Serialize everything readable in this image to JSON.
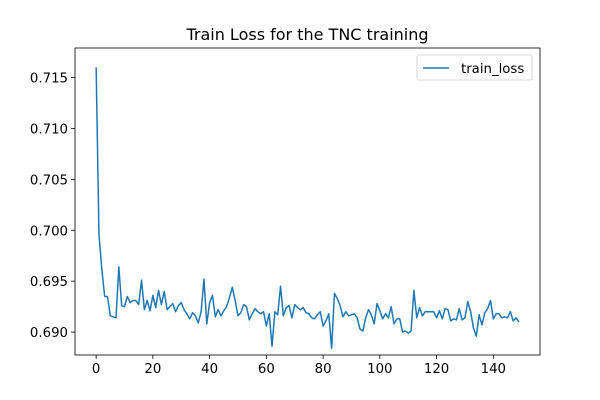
{
  "chart_data": {
    "type": "line",
    "title": "Train Loss for the TNC training",
    "xlabel": "",
    "ylabel": "",
    "xlim": [
      -7.45,
      156.45
    ],
    "ylim": [
      0.68775,
      0.7179
    ],
    "xticks": [
      0,
      20,
      40,
      60,
      80,
      100,
      120,
      140
    ],
    "xtick_labels": [
      "0",
      "20",
      "40",
      "60",
      "80",
      "100",
      "120",
      "140"
    ],
    "yticks": [
      0.69,
      0.695,
      0.7,
      0.705,
      0.71,
      0.715
    ],
    "ytick_labels": [
      "0.690",
      "0.695",
      "0.700",
      "0.705",
      "0.710",
      "0.715"
    ],
    "grid": false,
    "legend_position": "top-right",
    "series": [
      {
        "name": "train_loss",
        "color": "#1f77b4",
        "x": [
          0,
          1,
          2,
          3,
          4,
          5,
          6,
          7,
          8,
          9,
          10,
          11,
          12,
          13,
          14,
          15,
          16,
          17,
          18,
          19,
          20,
          21,
          22,
          23,
          24,
          25,
          26,
          27,
          28,
          29,
          30,
          31,
          32,
          33,
          34,
          35,
          36,
          37,
          38,
          39,
          40,
          41,
          42,
          43,
          44,
          45,
          46,
          47,
          48,
          49,
          50,
          51,
          52,
          53,
          54,
          55,
          56,
          57,
          58,
          59,
          60,
          61,
          62,
          63,
          64,
          65,
          66,
          67,
          68,
          69,
          70,
          71,
          72,
          73,
          74,
          75,
          76,
          77,
          78,
          79,
          80,
          81,
          82,
          83,
          84,
          85,
          86,
          87,
          88,
          89,
          90,
          91,
          92,
          93,
          94,
          95,
          96,
          97,
          98,
          99,
          100,
          101,
          102,
          103,
          104,
          105,
          106,
          107,
          108,
          109,
          110,
          111,
          112,
          113,
          114,
          115,
          116,
          117,
          118,
          119,
          120,
          121,
          122,
          123,
          124,
          125,
          126,
          127,
          128,
          129,
          130,
          131,
          132,
          133,
          134,
          135,
          136,
          137,
          138,
          139,
          140,
          141,
          142,
          143,
          144,
          145,
          146,
          147,
          148,
          149
        ],
        "values": [
          0.716,
          0.6996,
          0.6962,
          0.6935,
          0.6935,
          0.6916,
          0.6915,
          0.6914,
          0.6964,
          0.6926,
          0.6925,
          0.6935,
          0.6929,
          0.6931,
          0.6931,
          0.6927,
          0.6951,
          0.6922,
          0.6931,
          0.6921,
          0.6936,
          0.6924,
          0.6941,
          0.6927,
          0.694,
          0.6922,
          0.6925,
          0.6928,
          0.692,
          0.6926,
          0.6929,
          0.6922,
          0.6918,
          0.6913,
          0.6919,
          0.6916,
          0.6909,
          0.692,
          0.6952,
          0.6908,
          0.6929,
          0.6936,
          0.6915,
          0.6922,
          0.6916,
          0.6921,
          0.6925,
          0.6934,
          0.6944,
          0.6931,
          0.6916,
          0.6919,
          0.6927,
          0.6925,
          0.6912,
          0.6918,
          0.6923,
          0.692,
          0.6918,
          0.692,
          0.6906,
          0.6918,
          0.6886,
          0.692,
          0.6917,
          0.6945,
          0.6916,
          0.6924,
          0.6926,
          0.6914,
          0.6927,
          0.6924,
          0.6922,
          0.6924,
          0.6919,
          0.6918,
          0.6914,
          0.6913,
          0.6917,
          0.692,
          0.6906,
          0.6911,
          0.6918,
          0.6884,
          0.6938,
          0.6933,
          0.6926,
          0.6915,
          0.692,
          0.6916,
          0.6917,
          0.6918,
          0.6914,
          0.6903,
          0.6901,
          0.6914,
          0.6922,
          0.6917,
          0.6908,
          0.6928,
          0.6921,
          0.6913,
          0.6918,
          0.6914,
          0.6925,
          0.6908,
          0.6913,
          0.6913,
          0.69,
          0.6901,
          0.6899,
          0.6901,
          0.6941,
          0.6914,
          0.6924,
          0.6916,
          0.692,
          0.692,
          0.692,
          0.692,
          0.6914,
          0.6921,
          0.6913,
          0.6923,
          0.6922,
          0.6911,
          0.6913,
          0.6912,
          0.6923,
          0.6912,
          0.6914,
          0.693,
          0.692,
          0.6904,
          0.6896,
          0.6917,
          0.6907,
          0.6919,
          0.6923,
          0.6931,
          0.6913,
          0.6918,
          0.6918,
          0.6914,
          0.6915,
          0.6914,
          0.692,
          0.6911,
          0.6914,
          0.691
        ]
      }
    ]
  }
}
